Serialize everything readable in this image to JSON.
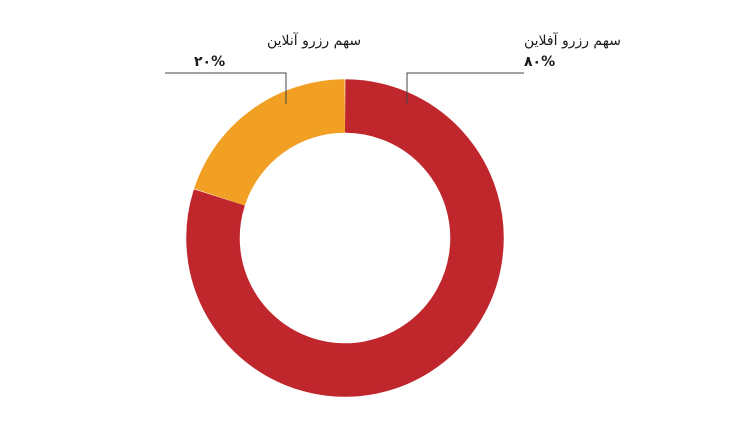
{
  "chart_data": {
    "type": "pie",
    "style": "donut",
    "slices": [
      {
        "label": "سهم رزرو آفلاین",
        "value_label": "۸۰%",
        "value": 80,
        "color": "#c0272d"
      },
      {
        "label": "سهم رزرو آنلاین",
        "value_label": "۲۰%",
        "value": 20,
        "color": "#f2a024"
      }
    ],
    "start_angle_deg": 0,
    "direction": "clockwise",
    "legend": "callouts"
  }
}
